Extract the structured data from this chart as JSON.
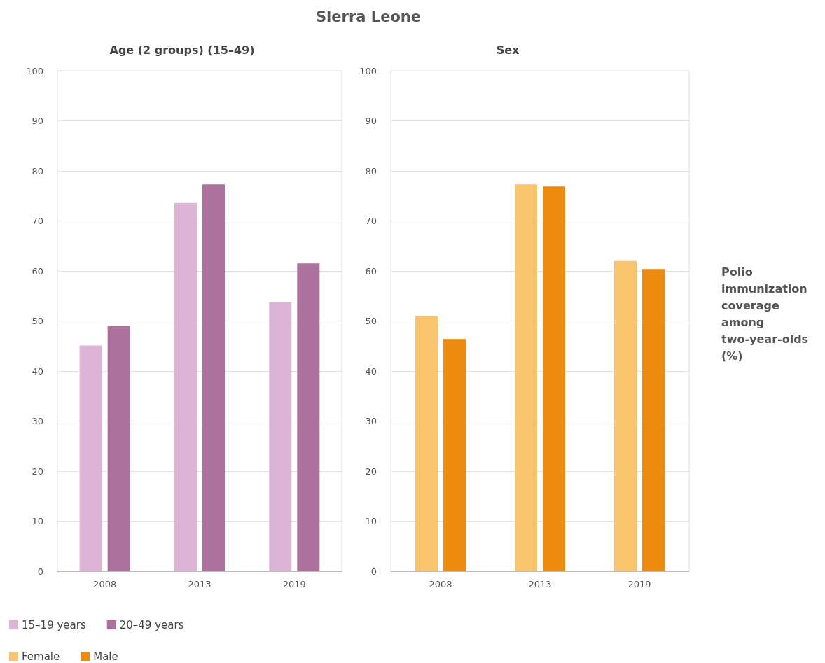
{
  "chart_data": [
    {
      "type": "bar",
      "title": "Sierra Leone",
      "subtitle": "Age (2 groups) (15–49)",
      "categories": [
        "2008",
        "2013",
        "2019"
      ],
      "series": [
        {
          "name": "15–19 years",
          "color": "#dcb5d6",
          "values": [
            45.1,
            73.6,
            53.7
          ]
        },
        {
          "name": "20–49 years",
          "color": "#ad719e",
          "values": [
            49.0,
            77.3,
            61.5
          ]
        }
      ],
      "ylim": [
        0,
        100
      ],
      "yticks": [
        0,
        10,
        20,
        30,
        40,
        50,
        60,
        70,
        80,
        90,
        100
      ],
      "grid": "y",
      "legend": "bottom left"
    },
    {
      "type": "bar",
      "title": "Sex",
      "categories": [
        "2008",
        "2013",
        "2019"
      ],
      "series": [
        {
          "name": "Female",
          "color": "#f9c46c",
          "values": [
            50.9,
            77.3,
            62.0
          ]
        },
        {
          "name": "Male",
          "color": "#ec8b10",
          "values": [
            46.4,
            76.9,
            60.4
          ]
        }
      ],
      "ylim": [
        0,
        100
      ],
      "yticks": [
        0,
        10,
        20,
        30,
        40,
        50,
        60,
        70,
        80,
        90,
        100
      ],
      "grid": "y",
      "legend": "bottom left",
      "annotations": [
        "Polio immunization coverage among two-year-olds (%)"
      ]
    }
  ]
}
